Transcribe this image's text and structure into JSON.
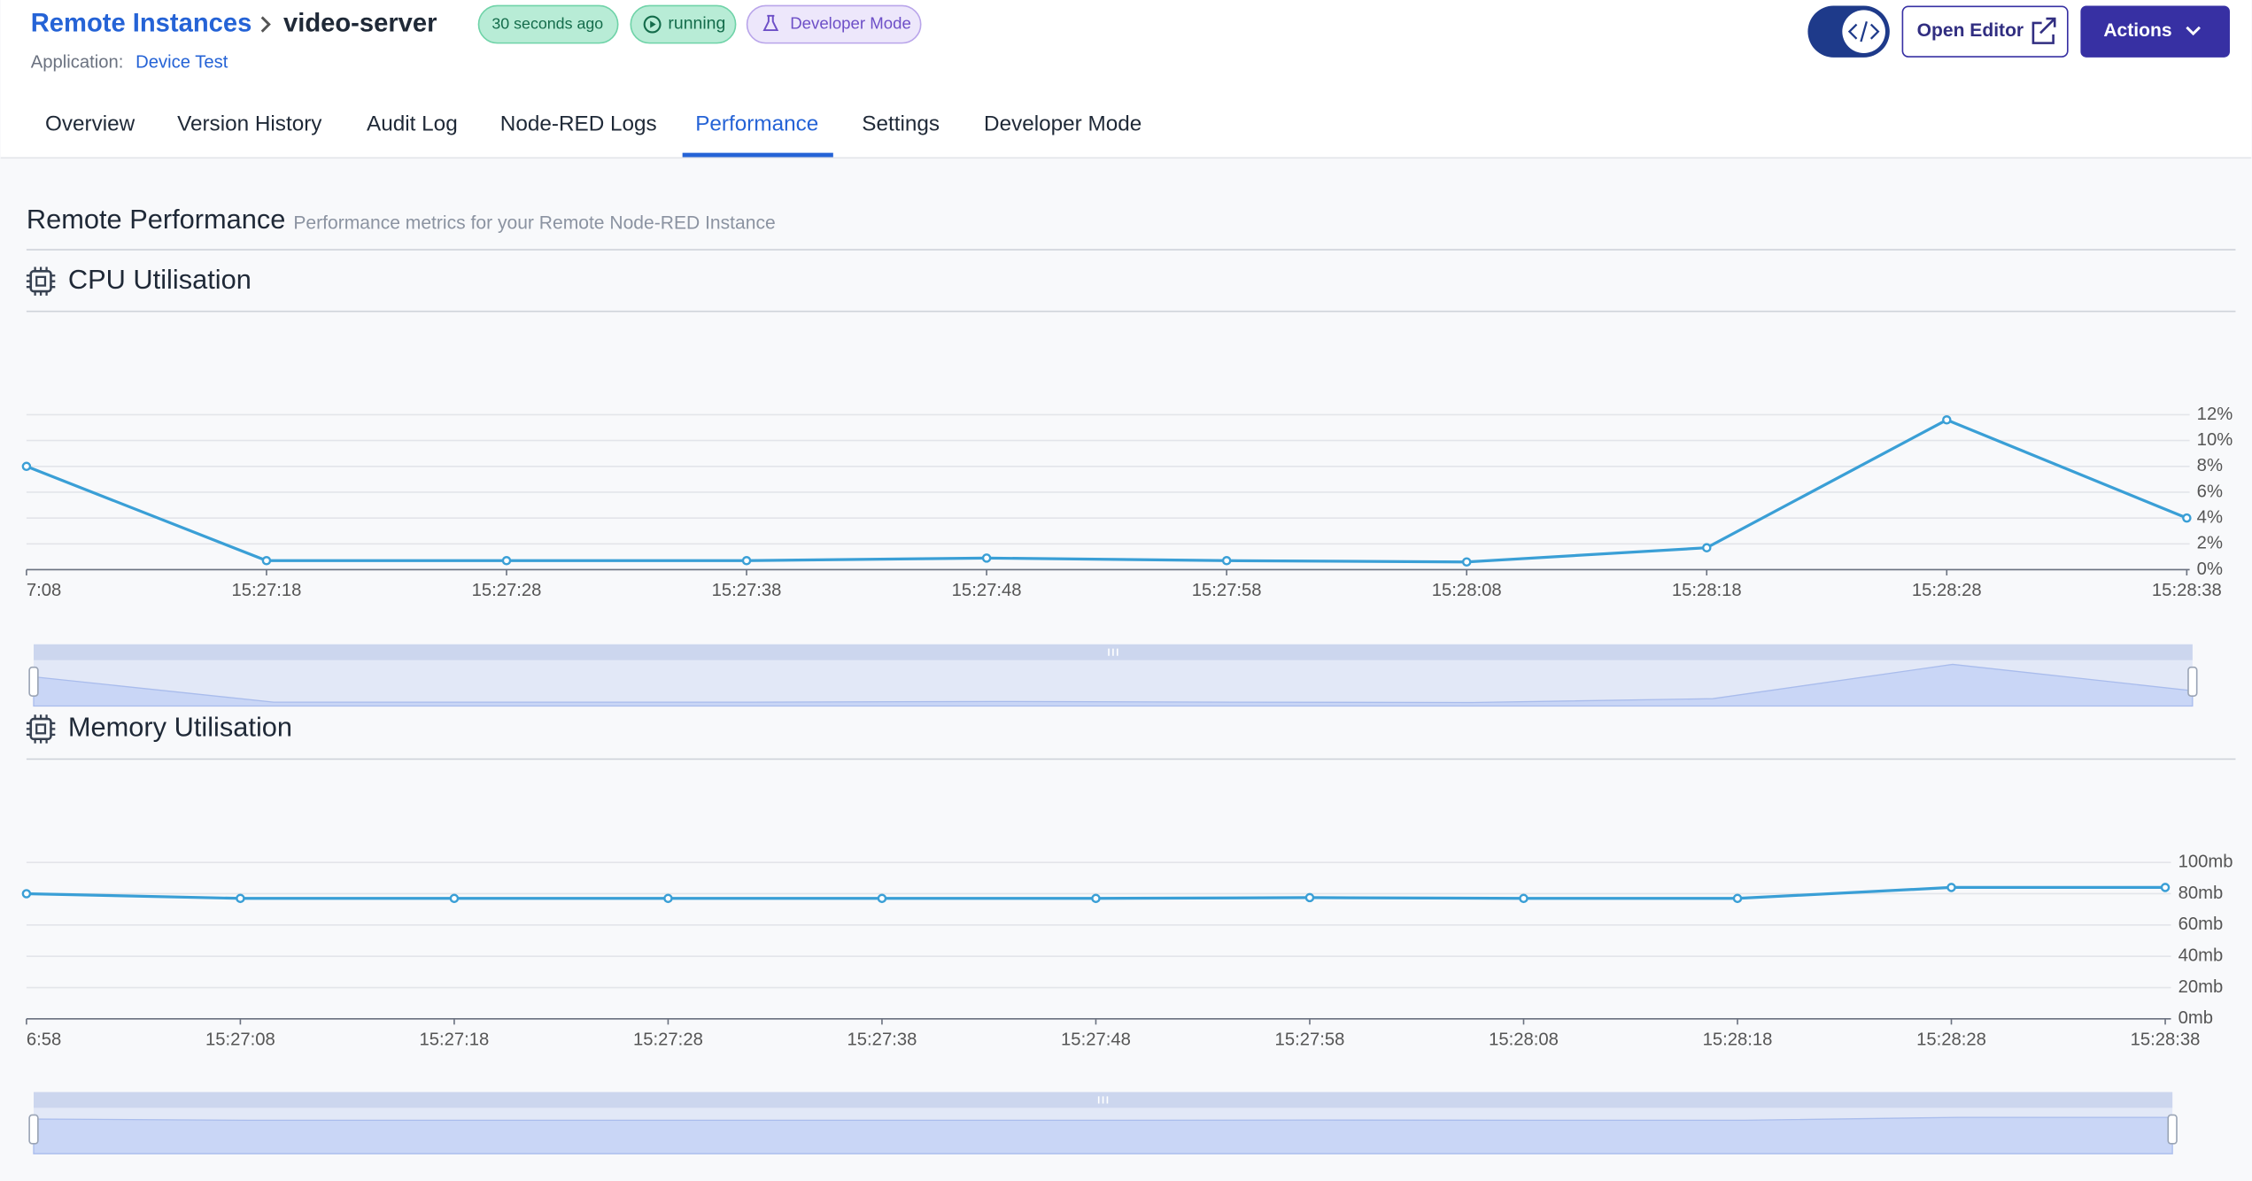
{
  "breadcrumb": {
    "parent": "Remote Instances",
    "current": "video-server"
  },
  "badges": [
    "30 seconds ago",
    "running",
    "Developer Mode"
  ],
  "application": {
    "label": "Application:",
    "name": "Device Test"
  },
  "buttons": {
    "open_editor": "Open Editor",
    "actions": "Actions"
  },
  "tabs": [
    "Overview",
    "Version History",
    "Audit Log",
    "Node-RED Logs",
    "Performance",
    "Settings",
    "Developer Mode"
  ],
  "active_tab": 4,
  "section": {
    "title": "Remote Performance",
    "subtitle": "Performance metrics for your Remote Node-RED Instance"
  },
  "chart_data": [
    {
      "type": "line",
      "title": "CPU Utilisation",
      "color": "#3a9fd6",
      "grid": true,
      "categories": [
        "7:08",
        "15:27:18",
        "15:27:28",
        "15:27:38",
        "15:27:48",
        "15:27:58",
        "15:28:08",
        "15:28:18",
        "15:28:28",
        "15:28:38"
      ],
      "values": [
        8,
        0.7,
        0.7,
        0.7,
        0.9,
        0.7,
        0.6,
        1.7,
        11.6,
        4
      ],
      "ylim": [
        0,
        12
      ],
      "yticks": [
        {
          "value": 0,
          "label": "0%"
        },
        {
          "value": 2,
          "label": "2%"
        },
        {
          "value": 4,
          "label": "4%"
        },
        {
          "value": 6,
          "label": "6%"
        },
        {
          "value": 8,
          "label": "8%"
        },
        {
          "value": 10,
          "label": "10%"
        },
        {
          "value": 12,
          "label": "12%"
        }
      ]
    },
    {
      "type": "line",
      "title": "Memory Utilisation",
      "color": "#3a9fd6",
      "grid": true,
      "categories": [
        "6:58",
        "15:27:08",
        "15:27:18",
        "15:27:28",
        "15:27:38",
        "15:27:48",
        "15:27:58",
        "15:28:08",
        "15:28:18",
        "15:28:28",
        "15:28:38"
      ],
      "values": [
        80,
        77,
        77,
        77,
        77,
        77,
        77.5,
        77,
        77,
        84,
        84
      ],
      "ylim": [
        0,
        100
      ],
      "yticks": [
        {
          "value": 0,
          "label": "0mb"
        },
        {
          "value": 20,
          "label": "20mb"
        },
        {
          "value": 40,
          "label": "40mb"
        },
        {
          "value": 60,
          "label": "60mb"
        },
        {
          "value": 80,
          "label": "80mb"
        },
        {
          "value": 100,
          "label": "100mb"
        }
      ]
    }
  ]
}
